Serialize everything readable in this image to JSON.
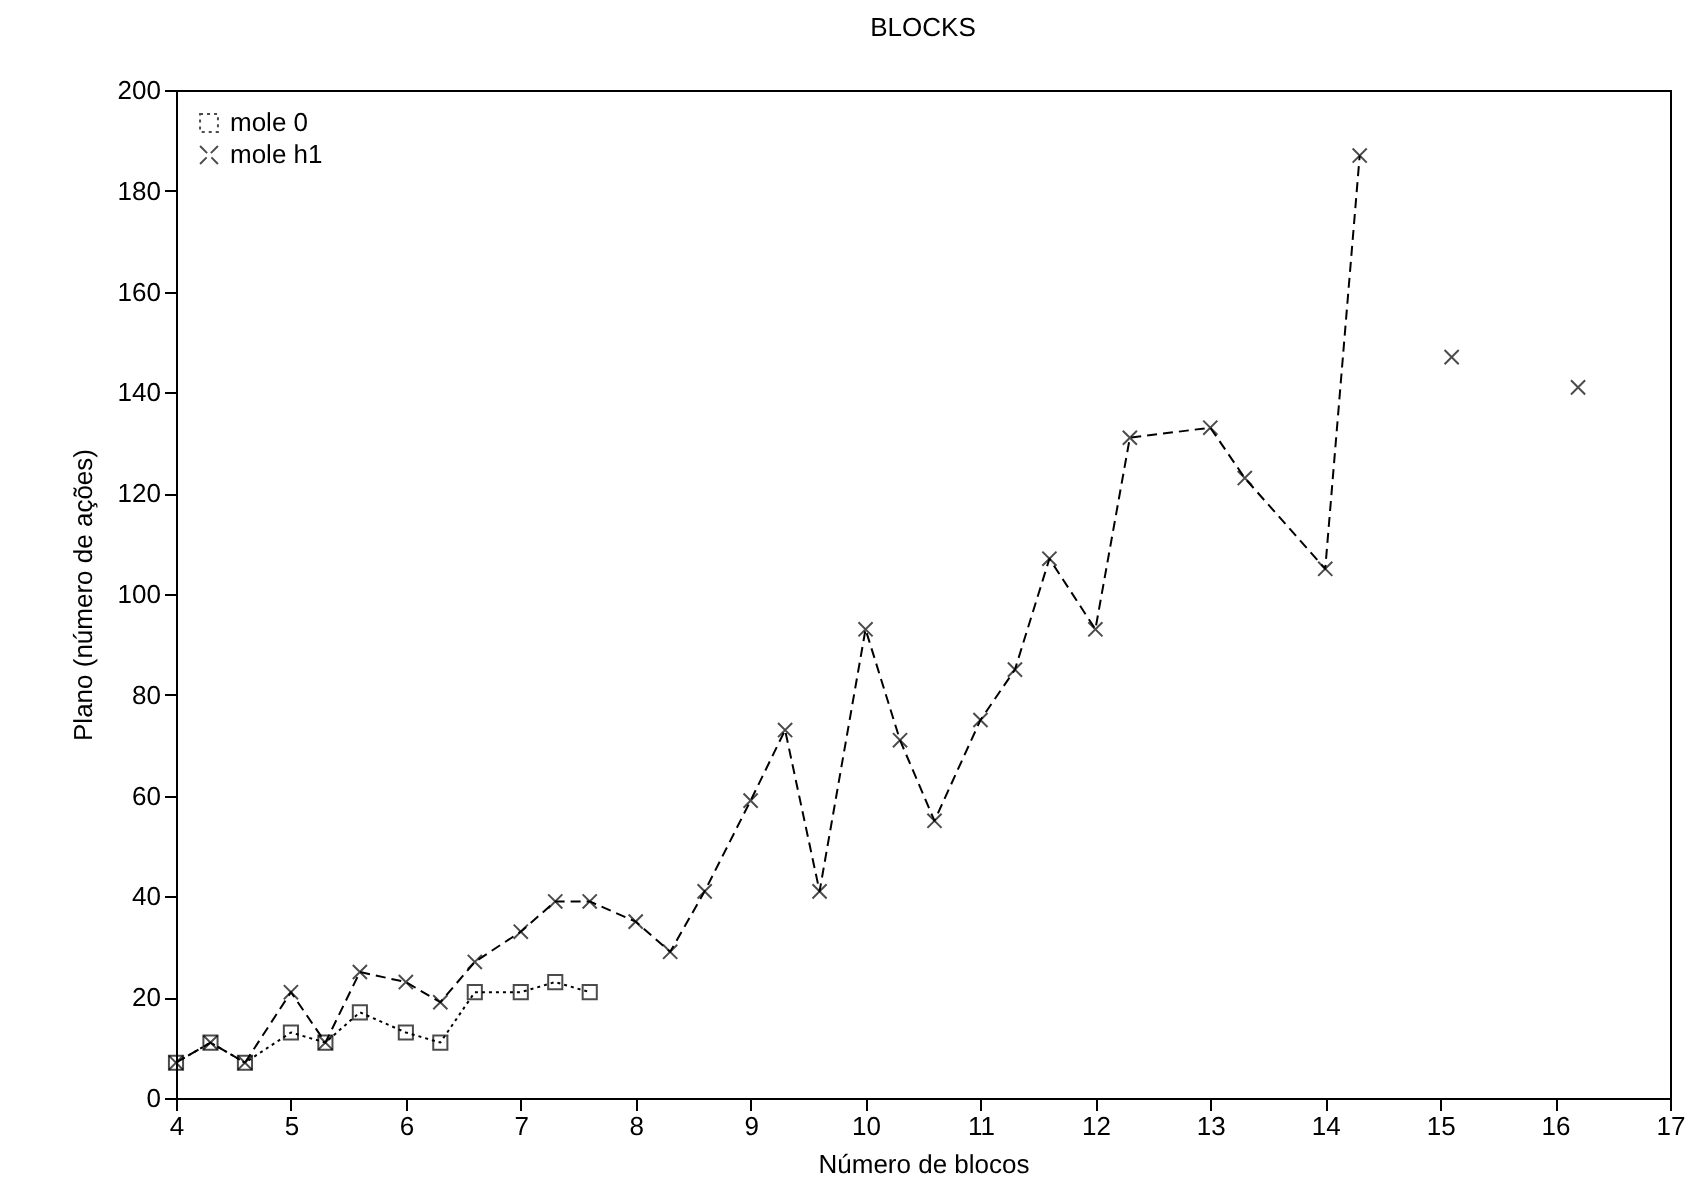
{
  "chart_data": {
    "type": "line",
    "title": "BLOCKS",
    "xlabel": "Número de blocos",
    "ylabel": "Plano (número de ações)",
    "xlim": [
      4,
      17
    ],
    "xticks": [
      4,
      5,
      6,
      7,
      8,
      9,
      10,
      11,
      12,
      13,
      14,
      15,
      16,
      17
    ],
    "ylim": [
      0,
      200
    ],
    "yticks": [
      0,
      20,
      40,
      60,
      80,
      100,
      120,
      140,
      160,
      180,
      200
    ],
    "grid": false,
    "legend": "top left",
    "series": [
      {
        "name": "mole 0",
        "color": "#000000",
        "marker": "square",
        "line_style": "dotted",
        "x": [
          4,
          4.3,
          4.6,
          5,
          5.3,
          5.6,
          6,
          6.3,
          6.6,
          7,
          7.3,
          7.6
        ],
        "values": [
          7,
          11,
          7,
          13,
          11,
          17,
          13,
          11,
          21,
          21,
          23,
          21
        ]
      },
      {
        "name": "mole h1",
        "color": "#000000",
        "marker": "cross",
        "line_style": "dashed",
        "x": [
          4,
          4.3,
          4.6,
          5,
          5.3,
          5.6,
          6,
          6.3,
          6.6,
          7,
          7.3,
          7.6,
          8,
          8.3,
          8.6,
          9,
          9.3,
          9.6,
          10,
          10.3,
          10.6,
          11,
          11.3,
          11.6,
          12,
          12.3,
          13,
          13.3,
          14,
          14.3,
          null,
          15.1,
          null,
          16.2
        ],
        "values": [
          7,
          11,
          7,
          21,
          11,
          25,
          23,
          19,
          27,
          33,
          39,
          39,
          35,
          29,
          41,
          59,
          73,
          41,
          93,
          71,
          55,
          75,
          85,
          107,
          93,
          131,
          133,
          123,
          105,
          187,
          null,
          147,
          null,
          141
        ]
      }
    ]
  }
}
